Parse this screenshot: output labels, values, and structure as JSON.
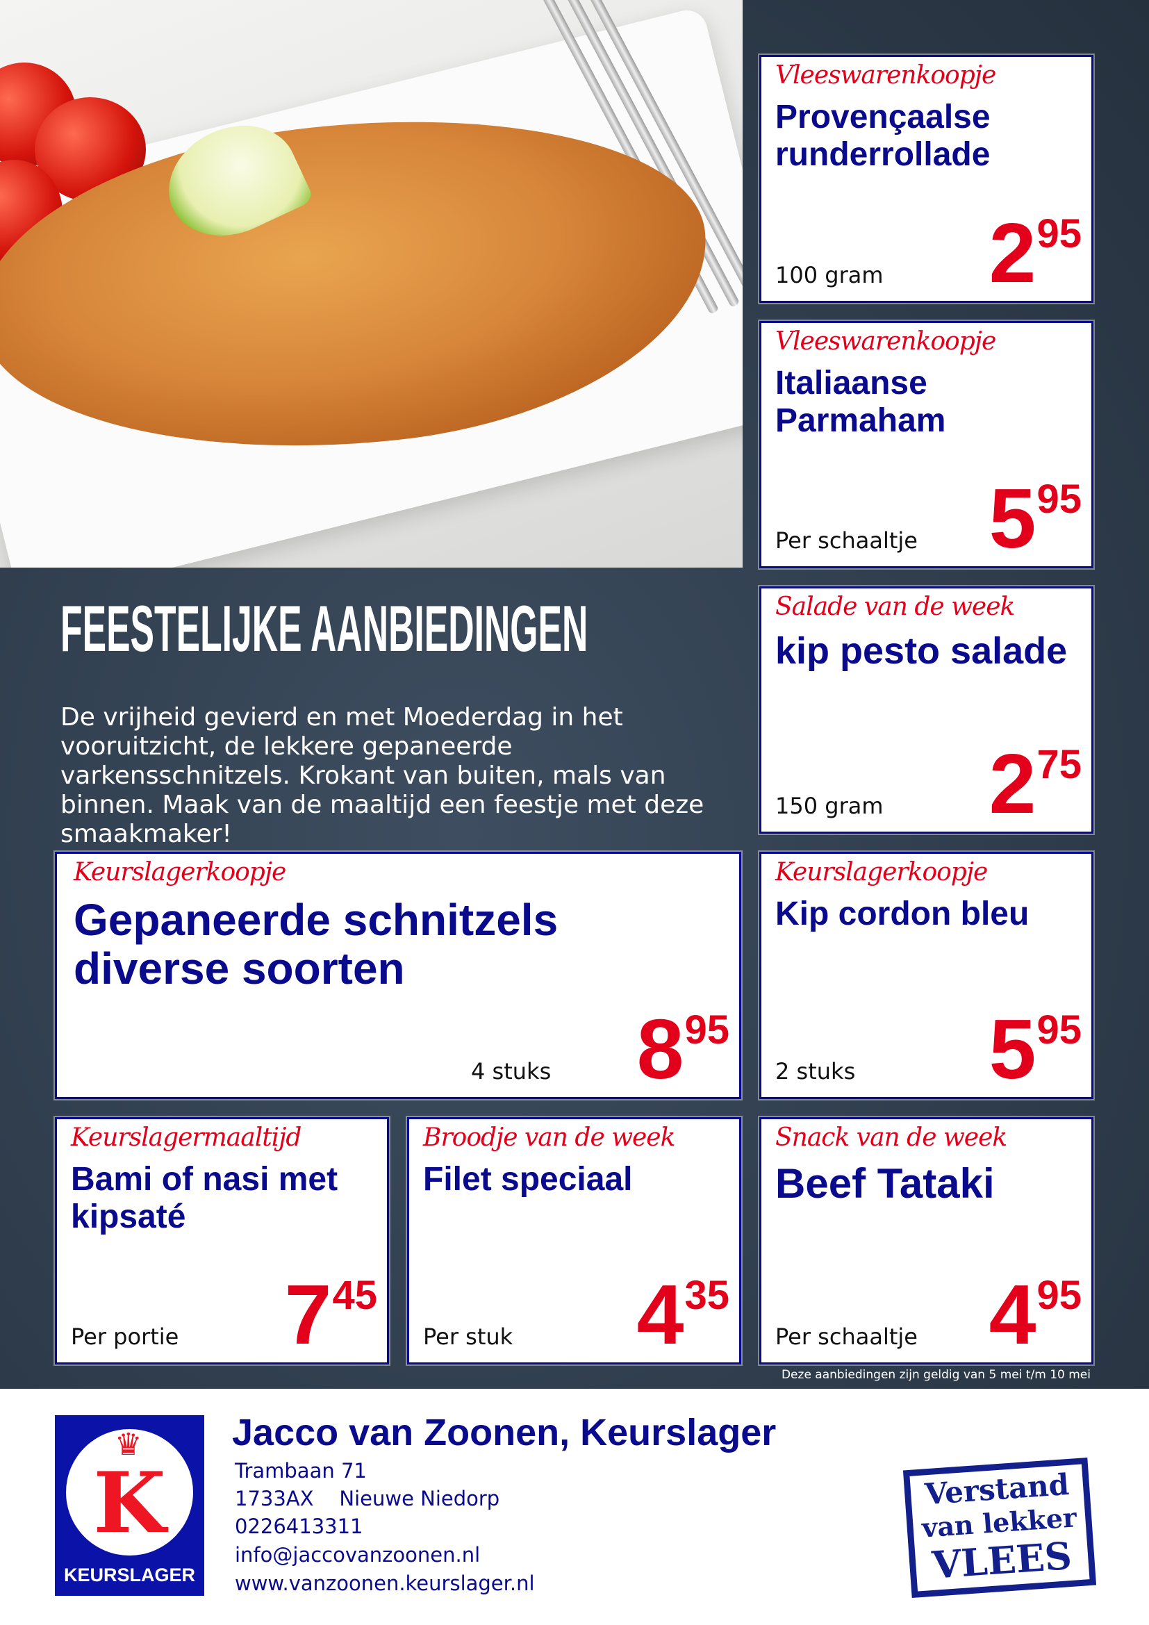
{
  "headline": "FEESTELIJKE AANBIEDINGEN",
  "intro": "De vrijheid gevierd en met Moederdag in het vooruitzicht, de lekkere gepaneerde varkensschnitzels. Krokant van buiten, mals van binnen. Maak van de maaltijd een feestje met deze smaakmaker!",
  "offers": [
    {
      "category": "Vleeswarenkoopje",
      "title": "Provençaalse runderrollade",
      "unit": "100 gram",
      "price_euros": "2",
      "price_cents": "95"
    },
    {
      "category": "Vleeswarenkoopje",
      "title": "Italiaanse Parmaham",
      "unit": "Per schaaltje",
      "price_euros": "5",
      "price_cents": "95"
    },
    {
      "category": "Salade van de week",
      "title": "kip pesto salade",
      "unit": "150 gram",
      "price_euros": "2",
      "price_cents": "75"
    },
    {
      "category": "Keurslagerkoopje",
      "title": "Gepaneerde schnitzels diverse soorten",
      "unit": "4 stuks",
      "price_euros": "8",
      "price_cents": "95"
    },
    {
      "category": "Keurslagerkoopje",
      "title": "Kip cordon bleu",
      "unit": "2 stuks",
      "price_euros": "5",
      "price_cents": "95"
    },
    {
      "category": "Keurslagermaaltijd",
      "title": "Bami of nasi met kipsaté",
      "unit": "Per portie",
      "price_euros": "7",
      "price_cents": "45"
    },
    {
      "category": "Broodje van de week",
      "title": "Filet speciaal",
      "unit": "Per stuk",
      "price_euros": "4",
      "price_cents": "35"
    },
    {
      "category": "Snack van de week",
      "title": "Beef Tataki",
      "unit": "Per schaaltje",
      "price_euros": "4",
      "price_cents": "95"
    }
  ],
  "validity": "Deze aanbiedingen zijn geldig van 5 mei t/m 10 mei",
  "footer": {
    "logo_letter": "K",
    "logo_label": "KEURSLAGER",
    "shop_name": "Jacco van Zoonen, Keurslager",
    "street": "Trambaan 71",
    "postcode_city": "1733AX    Nieuwe Niedorp",
    "phone": "0226413311",
    "email": "info@jaccovanzoonen.nl",
    "website": "www.vanzoonen.keurslager.nl",
    "stamp": [
      "Verstand",
      "van lekker",
      "VLEES"
    ]
  },
  "colors": {
    "navy": "#0a0a8c",
    "red": "#e3001b",
    "background": "#2f3d4d"
  }
}
